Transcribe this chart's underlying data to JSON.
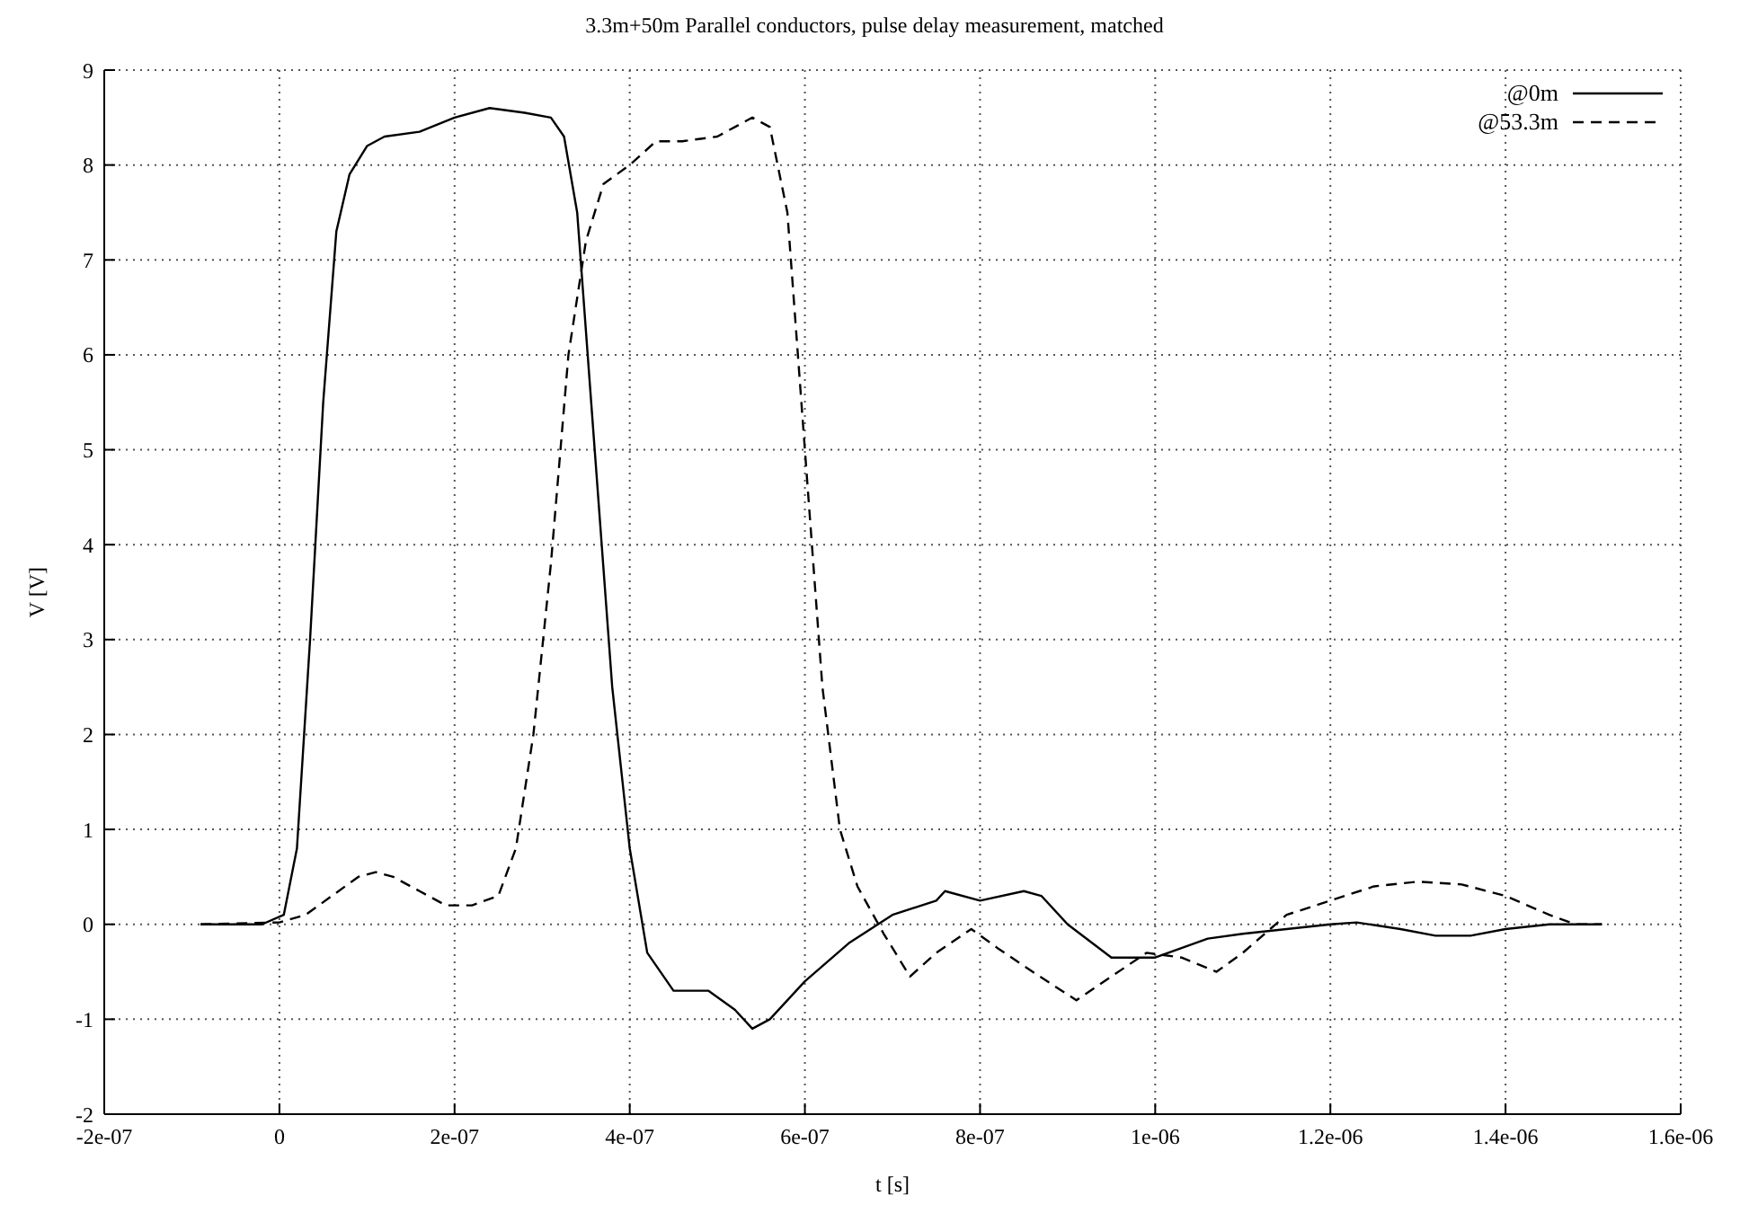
{
  "chart_data": {
    "type": "line",
    "title": "3.3m+50m Parallel conductors, pulse delay measurement, matched",
    "xlabel": "t [s]",
    "ylabel": "V [V]",
    "xlim": [
      -2e-07,
      1.6e-06
    ],
    "ylim": [
      -2,
      9
    ],
    "xticks": [
      {
        "value": -2e-07,
        "label": "-2e-07"
      },
      0,
      {
        "value": 2e-07,
        "label": "2e-07"
      },
      {
        "value": 4e-07,
        "label": "4e-07"
      },
      {
        "value": 6e-07,
        "label": "6e-07"
      },
      {
        "value": 8e-07,
        "label": "8e-07"
      },
      {
        "value": 1e-06,
        "label": "1e-06"
      },
      {
        "value": 1.2e-06,
        "label": "1.2e-06"
      },
      {
        "value": 1.4e-06,
        "label": "1.4e-06"
      },
      {
        "value": 1.6e-06,
        "label": "1.6e-06"
      }
    ],
    "yticks": [
      -2,
      -1,
      0,
      1,
      2,
      3,
      4,
      5,
      6,
      7,
      8,
      9
    ],
    "grid": true,
    "legend": "top right",
    "marker": "none",
    "series": [
      {
        "name": "@0m",
        "color": "#000000",
        "line_style": "solid",
        "x": [
          -9e-08,
          -2e-08,
          5e-09,
          2e-08,
          3.5e-08,
          5e-08,
          6.5e-08,
          8e-08,
          1e-07,
          1.2e-07,
          1.6e-07,
          2e-07,
          2.4e-07,
          2.8e-07,
          3.1e-07,
          3.25e-07,
          3.4e-07,
          3.6e-07,
          3.8e-07,
          4e-07,
          4.2e-07,
          4.5e-07,
          4.9e-07,
          5.2e-07,
          5.4e-07,
          5.6e-07,
          6e-07,
          6.5e-07,
          7e-07,
          7.5e-07,
          7.6e-07,
          8e-07,
          8.5e-07,
          8.7e-07,
          9e-07,
          9.5e-07,
          1e-06,
          1.03e-06,
          1.06e-06,
          1.1e-06,
          1.15e-06,
          1.2e-06,
          1.23e-06,
          1.28e-06,
          1.32e-06,
          1.36e-06,
          1.4e-06,
          1.45e-06,
          1.51e-06
        ],
        "values": [
          0,
          0,
          0.1,
          0.8,
          3,
          5.5,
          7.3,
          7.9,
          8.2,
          8.3,
          8.35,
          8.5,
          8.6,
          8.55,
          8.5,
          8.3,
          7.5,
          5,
          2.5,
          0.8,
          -0.3,
          -0.7,
          -0.7,
          -0.9,
          -1.1,
          -1,
          -0.6,
          -0.2,
          0.1,
          0.25,
          0.35,
          0.25,
          0.35,
          0.3,
          0,
          -0.35,
          -0.35,
          -0.25,
          -0.15,
          -0.1,
          -0.05,
          0,
          0.02,
          -0.05,
          -0.12,
          -0.12,
          -0.05,
          0,
          0
        ]
      },
      {
        "name": "@53.3m",
        "color": "#000000",
        "line_style": "dashed",
        "x": [
          -9e-08,
          0,
          3e-08,
          6e-08,
          9e-08,
          1.1e-07,
          1.3e-07,
          1.6e-07,
          1.9e-07,
          2.2e-07,
          2.5e-07,
          2.7e-07,
          2.9e-07,
          3.1e-07,
          3.3e-07,
          3.5e-07,
          3.7e-07,
          4e-07,
          4.3e-07,
          4.6e-07,
          5e-07,
          5.4e-07,
          5.6e-07,
          5.8e-07,
          6e-07,
          6.2e-07,
          6.4e-07,
          6.6e-07,
          6.9e-07,
          7.2e-07,
          7.5e-07,
          7.9e-07,
          8.2e-07,
          8.6e-07,
          9.1e-07,
          9.5e-07,
          9.9e-07,
          1.03e-06,
          1.07e-06,
          1.1e-06,
          1.15e-06,
          1.2e-06,
          1.25e-06,
          1.3e-06,
          1.35e-06,
          1.4e-06,
          1.45e-06,
          1.48e-06,
          1.51e-06
        ],
        "values": [
          0,
          0.02,
          0.1,
          0.3,
          0.5,
          0.55,
          0.5,
          0.35,
          0.2,
          0.2,
          0.3,
          0.8,
          2,
          3.8,
          6,
          7.2,
          7.8,
          8,
          8.25,
          8.25,
          8.3,
          8.5,
          8.4,
          7.5,
          5,
          2.5,
          1,
          0.4,
          -0.1,
          -0.55,
          -0.3,
          -0.05,
          -0.25,
          -0.5,
          -0.8,
          -0.55,
          -0.3,
          -0.35,
          -0.5,
          -0.3,
          0.1,
          0.25,
          0.4,
          0.45,
          0.42,
          0.3,
          0.1,
          0,
          0
        ]
      }
    ]
  }
}
